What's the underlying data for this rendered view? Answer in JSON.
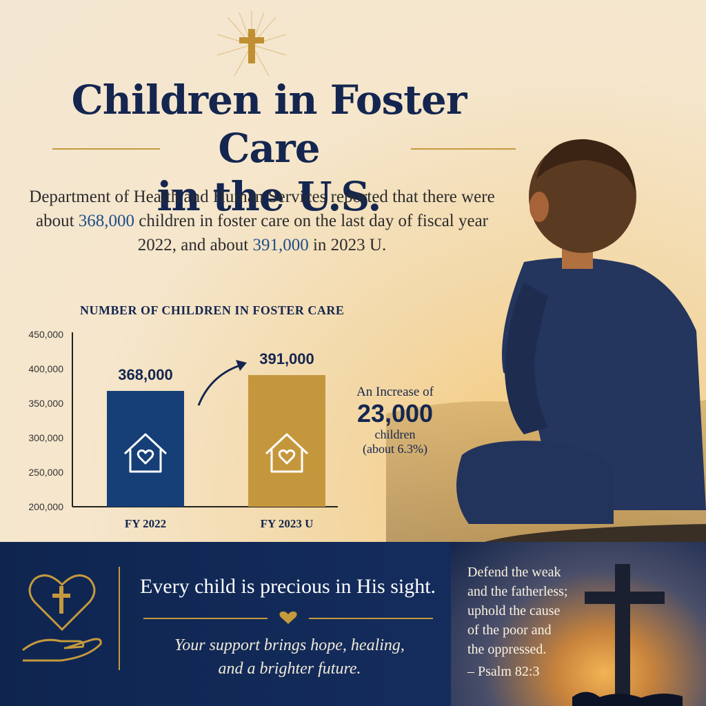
{
  "title": {
    "line1": "Children in Foster Care",
    "line2": "in the U.S."
  },
  "intro": {
    "part1": "Department of Health and Human Services reported that there were about ",
    "num1": "368,000",
    "part2": " children in foster care on the last day of fiscal year 2022, and about ",
    "num2": "391,000",
    "part3": " in 2023 U."
  },
  "chart_data": {
    "type": "bar",
    "title": "NUMBER OF CHILDREN IN FOSTER CARE",
    "categories": [
      "FY 2022",
      "FY 2023 U"
    ],
    "values": [
      368000,
      391000
    ],
    "value_labels": [
      "368,000",
      "391,000"
    ],
    "bar_colors": [
      "#163f78",
      "#c5973d"
    ],
    "ylim": [
      200000,
      450000
    ],
    "yticks": [
      200000,
      250000,
      300000,
      350000,
      400000,
      450000
    ],
    "ytick_labels": [
      "200,000",
      "250,000",
      "300,000",
      "350,000",
      "400,000",
      "450,000"
    ],
    "xlabel": "",
    "ylabel": "",
    "bar_icon": "house-heart-icon"
  },
  "increase": {
    "prefix": "An Increase of",
    "value": "23,000",
    "unit": "children",
    "percent": "(about 6.3%)"
  },
  "banner": {
    "headline": "Every child is precious in His sight.",
    "sub_line1": "Your support brings hope, healing,",
    "sub_line2": "and a brighter future.",
    "verse_lines": [
      "Defend the weak",
      "and the fatherless;",
      "uphold the cause",
      "of the poor and",
      "the oppressed."
    ],
    "verse_cite": "– Psalm 82:3",
    "icon": "heart-cross-hand-icon"
  },
  "colors": {
    "navy": "#14264f",
    "gold": "#c59a3d",
    "blue_accent": "#1d4e8a"
  }
}
